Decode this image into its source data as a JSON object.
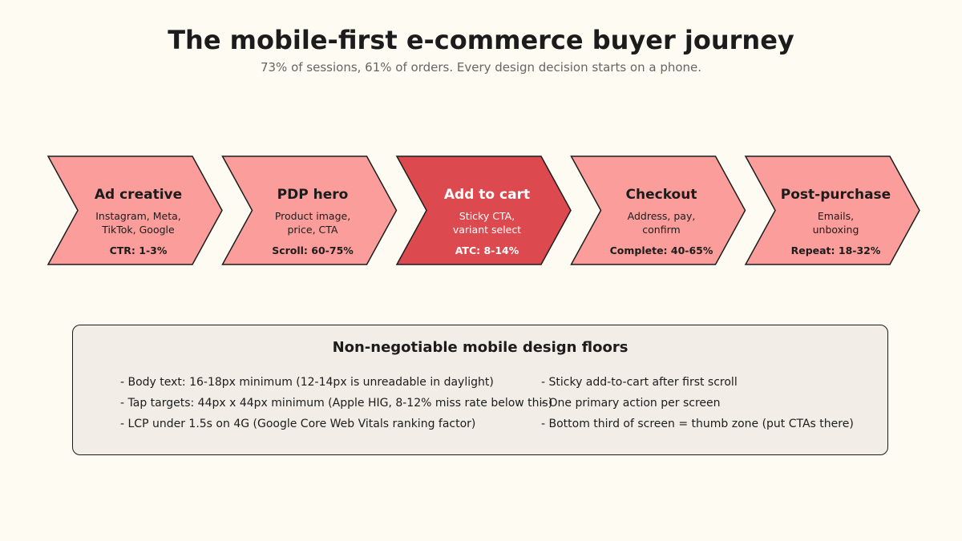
{
  "header": {
    "title": "The mobile-first e-commerce buyer journey",
    "subtitle": "73% of sessions, 61% of orders. Every design decision starts on a phone."
  },
  "journey": {
    "steps": [
      {
        "title": "Ad creative",
        "desc_lines": [
          "Instagram, Meta,",
          "TikTok, Google"
        ],
        "metric": "CTR: 1-3%",
        "highlight": false
      },
      {
        "title": "PDP hero",
        "desc_lines": [
          "Product image,",
          "price, CTA"
        ],
        "metric": "Scroll: 60-75%",
        "highlight": false
      },
      {
        "title": "Add to cart",
        "desc_lines": [
          "Sticky CTA,",
          "variant select"
        ],
        "metric": "ATC: 8-14%",
        "highlight": true
      },
      {
        "title": "Checkout",
        "desc_lines": [
          "Address, pay,",
          "confirm"
        ],
        "metric": "Complete: 40-65%",
        "highlight": false
      },
      {
        "title": "Post-purchase",
        "desc_lines": [
          "Emails,",
          "unboxing"
        ],
        "metric": "Repeat: 18-32%",
        "highlight": false
      }
    ]
  },
  "floors": {
    "title": "Non-negotiable mobile design floors",
    "left_items": [
      "- Body text: 16-18px minimum (12-14px is unreadable in daylight)",
      "- Tap targets: 44px x 44px minimum (Apple HIG, 8-12% miss rate below this)",
      "- LCP under 1.5s on 4G (Google Core Web Vitals ranking factor)"
    ],
    "right_items": [
      "- Sticky add-to-cart after first scroll",
      "- One primary action per screen",
      "- Bottom third of screen = thumb zone (put CTAs there)"
    ]
  },
  "colors": {
    "background": "#fefbf3",
    "step_fill": "#fb9e9b",
    "step_highlight_fill": "#dc4a4f",
    "step_stroke": "#1c1c1c",
    "panel_fill": "#f2ede6"
  }
}
